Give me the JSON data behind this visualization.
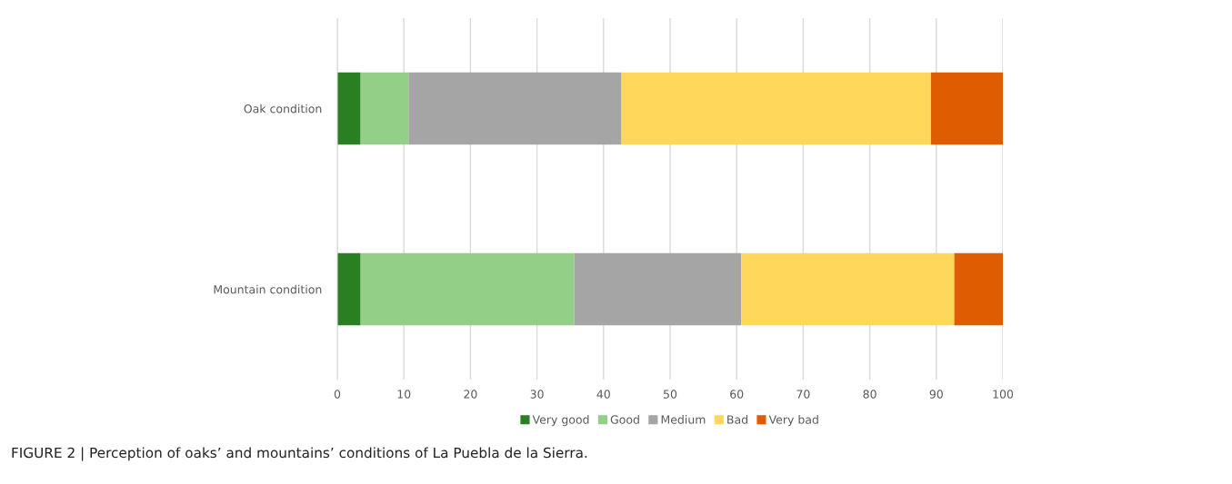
{
  "chart_data": {
    "type": "bar",
    "orientation": "horizontal",
    "stacked": true,
    "categories": [
      "Oak condition",
      "Mountain condition"
    ],
    "series": [
      {
        "name": "Very good",
        "color": "#2a7f22",
        "values": [
          3.5,
          3.5
        ]
      },
      {
        "name": "Good",
        "color": "#93cf87",
        "values": [
          7.2,
          32.1
        ]
      },
      {
        "name": "Medium",
        "color": "#a5a5a5",
        "values": [
          32.0,
          25.1
        ]
      },
      {
        "name": "Bad",
        "color": "#ffd75a",
        "values": [
          46.5,
          32.0
        ]
      },
      {
        "name": "Very bad",
        "color": "#e05c00",
        "values": [
          10.8,
          7.3
        ]
      }
    ],
    "xlim": [
      0,
      100
    ],
    "xticks": [
      0,
      10,
      20,
      30,
      40,
      50,
      60,
      70,
      80,
      90,
      100
    ],
    "grid": "x",
    "legend": "bottom",
    "annotations": [
      "FIGURE 2 | Perception of oaks’ and mountains’ conditions of La Puebla de la Sierra."
    ]
  }
}
